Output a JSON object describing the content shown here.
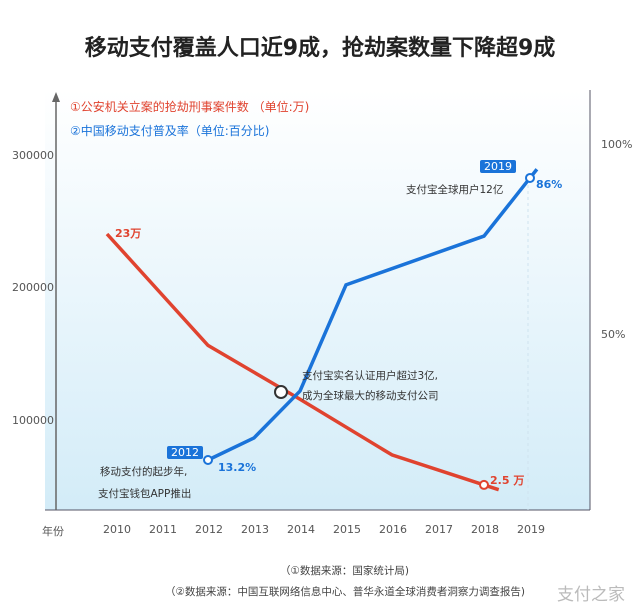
{
  "title": "移动支付覆盖人口近9成，抢劫案数量下降超9成",
  "chart_data": {
    "type": "line",
    "title": "移动支付覆盖人口近9成，抢劫案数量下降超9成",
    "xlabel": "年份",
    "x_ticks": [
      "2010",
      "2011",
      "2012",
      "2013",
      "2014",
      "2015",
      "2016",
      "2017",
      "2018",
      "2019"
    ],
    "y_left_ticks": [
      "300000",
      "200000",
      "100000"
    ],
    "y_right_ticks": [
      "100%",
      "50%"
    ],
    "legend_placement": "top-left",
    "series": [
      {
        "name": "①公安机关立案的抢劫刑事案件数 （单位:万)",
        "color": "#e0432f",
        "axis": "left",
        "x": [
          2010,
          2012,
          2014,
          2016,
          2018
        ],
        "y": [
          230000,
          139000,
          95000,
          49500,
          25000
        ]
      },
      {
        "name": "②中国移动支付普及率（单位:百分比)",
        "color": "#1a73d9",
        "axis": "right",
        "x": [
          2012,
          2013,
          2014,
          2015,
          2018,
          2019
        ],
        "y": [
          13.2,
          18.9,
          31,
          58.4,
          71,
          86
        ]
      }
    ],
    "data_labels": {
      "red_start": "23万",
      "red_end": "2.5 万",
      "blue_start": "13.2%",
      "blue_end": "86%"
    },
    "annotations": {
      "badge_2012": "2012",
      "note_2012_1": "移动支付的起步年,",
      "note_2012_2": "支付宝钱包APP推出",
      "note_mid_1": "支付宝实名认证用户超过3亿,",
      "note_mid_2": "成为全球最大的移动支付公司",
      "badge_2019": "2019",
      "note_2019": "支付宝全球用户12亿"
    }
  },
  "sources": {
    "s1": "（①数据来源：国家统计局)",
    "s2": "（②数据来源：中国互联网络信息中心、普华永道全球消费者洞察力调查报告)"
  },
  "watermark": "支付之家"
}
